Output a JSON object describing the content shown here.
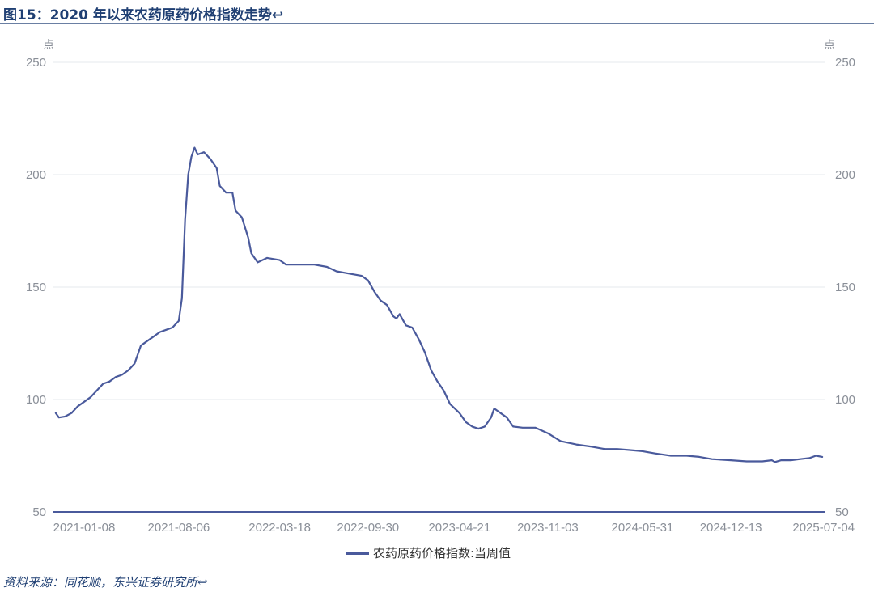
{
  "title": "图15：2020 年以来农药原药价格指数走势↩",
  "source": "资料来源：同花顺，东兴证券研究所↩",
  "colors": {
    "series": "#4a5a9c",
    "title": "#1f3f73",
    "axis": "#8a8f98"
  },
  "chart_data": {
    "type": "line",
    "title": "图15：2020 年以来农药原药价格指数走势",
    "y_unit_left": "点",
    "y_unit_right": "点",
    "ylim": [
      50,
      250
    ],
    "yticks": [
      50,
      100,
      150,
      200,
      250
    ],
    "xlim": [
      "2020-10-30",
      "2025-07-11"
    ],
    "xticks": [
      "2021-01-08",
      "2021-08-06",
      "2022-03-18",
      "2022-09-30",
      "2023-04-21",
      "2023-11-03",
      "2024-05-31",
      "2024-12-13",
      "2025-07-04"
    ],
    "grid": true,
    "legend_position": "bottom-center",
    "series": [
      {
        "name": "农药原药价格指数:当周值",
        "points": [
          [
            "2020-11-06",
            94
          ],
          [
            "2020-11-13",
            92
          ],
          [
            "2020-11-27",
            92.5
          ],
          [
            "2020-12-11",
            94
          ],
          [
            "2020-12-25",
            97
          ],
          [
            "2021-01-08",
            99
          ],
          [
            "2021-01-22",
            101
          ],
          [
            "2021-02-05",
            104
          ],
          [
            "2021-02-19",
            107
          ],
          [
            "2021-03-05",
            108
          ],
          [
            "2021-03-19",
            110
          ],
          [
            "2021-04-02",
            111
          ],
          [
            "2021-04-16",
            113
          ],
          [
            "2021-04-30",
            116
          ],
          [
            "2021-05-14",
            124
          ],
          [
            "2021-05-28",
            126
          ],
          [
            "2021-06-11",
            128
          ],
          [
            "2021-06-25",
            130
          ],
          [
            "2021-07-09",
            131
          ],
          [
            "2021-07-23",
            132
          ],
          [
            "2021-08-06",
            135
          ],
          [
            "2021-08-13",
            145
          ],
          [
            "2021-08-20",
            180
          ],
          [
            "2021-08-27",
            200
          ],
          [
            "2021-09-03",
            208
          ],
          [
            "2021-09-10",
            212
          ],
          [
            "2021-09-17",
            209
          ],
          [
            "2021-10-01",
            210
          ],
          [
            "2021-10-15",
            207
          ],
          [
            "2021-10-29",
            203
          ],
          [
            "2021-11-05",
            195
          ],
          [
            "2021-11-19",
            192
          ],
          [
            "2021-12-03",
            192
          ],
          [
            "2021-12-10",
            184
          ],
          [
            "2021-12-24",
            181
          ],
          [
            "2022-01-07",
            172
          ],
          [
            "2022-01-14",
            165
          ],
          [
            "2022-01-28",
            161
          ],
          [
            "2022-02-18",
            163
          ],
          [
            "2022-03-18",
            162
          ],
          [
            "2022-04-01",
            160
          ],
          [
            "2022-05-06",
            160
          ],
          [
            "2022-06-03",
            160
          ],
          [
            "2022-07-01",
            159
          ],
          [
            "2022-07-22",
            157
          ],
          [
            "2022-08-19",
            156
          ],
          [
            "2022-09-16",
            155
          ],
          [
            "2022-09-30",
            153
          ],
          [
            "2022-10-14",
            148
          ],
          [
            "2022-10-28",
            144
          ],
          [
            "2022-11-11",
            142
          ],
          [
            "2022-11-25",
            137
          ],
          [
            "2022-12-02",
            136
          ],
          [
            "2022-12-09",
            138
          ],
          [
            "2022-12-23",
            133
          ],
          [
            "2023-01-06",
            132
          ],
          [
            "2023-01-20",
            127
          ],
          [
            "2023-02-03",
            121
          ],
          [
            "2023-02-17",
            113
          ],
          [
            "2023-03-03",
            108
          ],
          [
            "2023-03-17",
            104
          ],
          [
            "2023-03-31",
            98
          ],
          [
            "2023-04-21",
            94
          ],
          [
            "2023-05-05",
            90
          ],
          [
            "2023-05-19",
            88
          ],
          [
            "2023-06-02",
            87
          ],
          [
            "2023-06-16",
            88
          ],
          [
            "2023-06-30",
            92
          ],
          [
            "2023-07-07",
            96
          ],
          [
            "2023-07-21",
            94
          ],
          [
            "2023-08-04",
            92
          ],
          [
            "2023-08-18",
            88
          ],
          [
            "2023-09-08",
            87.5
          ],
          [
            "2023-10-06",
            87.5
          ],
          [
            "2023-11-03",
            85
          ],
          [
            "2023-12-01",
            81.5
          ],
          [
            "2024-01-05",
            80
          ],
          [
            "2024-02-09",
            79
          ],
          [
            "2024-03-08",
            78
          ],
          [
            "2024-04-05",
            78
          ],
          [
            "2024-05-03",
            77.5
          ],
          [
            "2024-05-31",
            77
          ],
          [
            "2024-06-28",
            76
          ],
          [
            "2024-08-02",
            75
          ],
          [
            "2024-09-06",
            75
          ],
          [
            "2024-10-04",
            74.5
          ],
          [
            "2024-11-01",
            73.5
          ],
          [
            "2024-12-13",
            73
          ],
          [
            "2025-01-17",
            72.5
          ],
          [
            "2025-02-21",
            72.5
          ],
          [
            "2025-03-14",
            73
          ],
          [
            "2025-03-21",
            72.2
          ],
          [
            "2025-04-04",
            73
          ],
          [
            "2025-04-25",
            73
          ],
          [
            "2025-05-16",
            73.5
          ],
          [
            "2025-06-06",
            74
          ],
          [
            "2025-06-20",
            75
          ],
          [
            "2025-07-04",
            74.5
          ]
        ]
      }
    ]
  }
}
